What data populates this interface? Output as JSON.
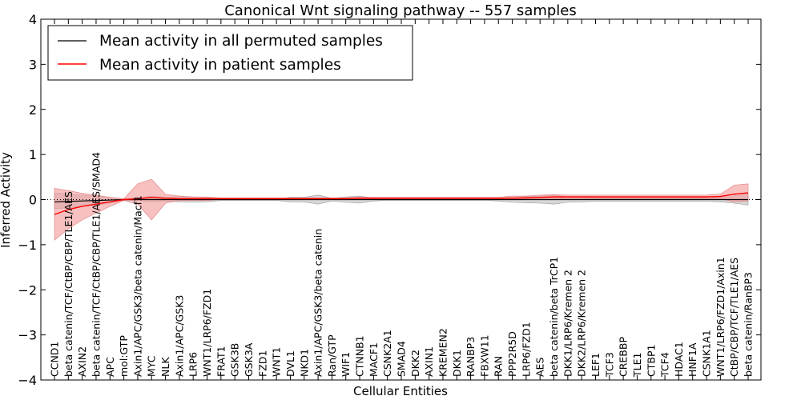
{
  "chart_data": {
    "type": "line",
    "title": "Canonical Wnt signaling pathway -- 557 samples",
    "xlabel": "Cellular Entities",
    "ylabel": "Inferred Activity",
    "ylim": [
      -4,
      4
    ],
    "yticks": [
      -4,
      -3,
      -2,
      -1,
      0,
      1,
      2,
      3,
      4
    ],
    "legend_position": "top-left",
    "colors": {
      "permuted": "#000000",
      "patient": "#ff0000",
      "patient_band": "#f4a0a0",
      "permuted_band": "#c8c8c8"
    },
    "categories": [
      "CCND1",
      "beta catenin/TCF/CtBP/CBP/TLE1/AES",
      "AXIN2",
      "beta catenin/TCF/CtBP/CBP/TLE1/AES/SMAD4",
      "APC",
      "mol:GTP",
      "Axin1/APC/GSK3/beta catenin/Macf1",
      "MYC",
      "NLK",
      "Axin1/APC/GSK3",
      "LRP6",
      "WNT1/LRP6/FZD1",
      "FRAT1",
      "GSK3B",
      "GSK3A",
      "FZD1",
      "WNT1",
      "DVL1",
      "NKD1",
      "Axin1/APC/GSK3/beta catenin",
      "Ran/GTP",
      "WIF1",
      "CTNNB1",
      "MACF1",
      "CSNK2A1",
      "SMAD4",
      "DKK2",
      "AXIN1",
      "KREMEN2",
      "DKK1",
      "RANBP3",
      "FBXW11",
      "RAN",
      "PPP2R5D",
      "LRP6/FZD1",
      "AES",
      "beta catenin/beta TrCP1",
      "DKK1/LRP6/Kremen 2",
      "DKK2/LRP6/Kremen 2",
      "LEF1",
      "TCF3",
      "CREBBP",
      "TLE1",
      "CTBP1",
      "TCF4",
      "HDAC1",
      "HNF1A",
      "CSNK1A1",
      "WNT1/LRP6/FZD1/Axin1",
      "CtBP/CBP/TCF/TLE1/AES",
      "beta catenin/RanBP3"
    ],
    "series": [
      {
        "name": "Mean activity in all permuted samples",
        "values": [
          -0.05,
          -0.04,
          -0.03,
          -0.02,
          -0.01,
          0.0,
          0.0,
          0.0,
          0.0,
          0.0,
          0.0,
          0.0,
          0.0,
          0.0,
          0.0,
          0.0,
          0.0,
          0.0,
          0.0,
          0.0,
          0.0,
          0.0,
          0.0,
          0.0,
          0.0,
          0.0,
          0.0,
          0.0,
          0.0,
          0.0,
          0.0,
          0.0,
          0.0,
          0.0,
          0.0,
          0.0,
          0.0,
          0.0,
          0.0,
          0.0,
          0.0,
          0.0,
          0.0,
          0.0,
          0.0,
          0.0,
          0.0,
          0.0,
          0.0,
          0.0,
          0.0
        ],
        "lower": [
          -0.2,
          -0.18,
          -0.15,
          -0.12,
          -0.08,
          -0.02,
          -0.02,
          -0.05,
          -0.03,
          -0.05,
          -0.06,
          -0.05,
          -0.02,
          -0.02,
          -0.02,
          -0.02,
          -0.02,
          -0.05,
          -0.05,
          -0.1,
          -0.03,
          -0.06,
          -0.08,
          -0.03,
          -0.02,
          -0.02,
          -0.02,
          -0.02,
          -0.02,
          -0.02,
          -0.02,
          -0.02,
          -0.03,
          -0.06,
          -0.07,
          -0.08,
          -0.1,
          -0.06,
          -0.05,
          -0.04,
          -0.04,
          -0.04,
          -0.04,
          -0.04,
          -0.04,
          -0.04,
          -0.04,
          -0.04,
          -0.05,
          -0.08,
          -0.12
        ],
        "upper": [
          0.15,
          0.12,
          0.1,
          0.08,
          0.05,
          0.02,
          0.04,
          0.08,
          0.05,
          0.07,
          0.06,
          0.05,
          0.02,
          0.02,
          0.02,
          0.02,
          0.02,
          0.05,
          0.05,
          0.1,
          0.03,
          0.06,
          0.08,
          0.03,
          0.02,
          0.02,
          0.02,
          0.02,
          0.02,
          0.02,
          0.02,
          0.02,
          0.03,
          0.06,
          0.07,
          0.08,
          0.1,
          0.06,
          0.05,
          0.04,
          0.04,
          0.04,
          0.04,
          0.04,
          0.04,
          0.04,
          0.04,
          0.04,
          0.05,
          0.08,
          0.12
        ]
      },
      {
        "name": "Mean activity in patient samples",
        "values": [
          -0.33,
          -0.22,
          -0.15,
          -0.1,
          -0.05,
          0.0,
          0.02,
          0.05,
          0.03,
          0.02,
          0.02,
          0.02,
          0.02,
          0.02,
          0.02,
          0.02,
          0.02,
          0.02,
          0.02,
          0.02,
          0.02,
          0.02,
          0.03,
          0.03,
          0.03,
          0.03,
          0.03,
          0.03,
          0.03,
          0.03,
          0.03,
          0.03,
          0.03,
          0.03,
          0.04,
          0.05,
          0.06,
          0.06,
          0.06,
          0.06,
          0.06,
          0.06,
          0.06,
          0.06,
          0.06,
          0.06,
          0.06,
          0.06,
          0.07,
          0.12,
          0.15
        ],
        "lower": [
          -0.9,
          -0.65,
          -0.45,
          -0.3,
          -0.15,
          -0.02,
          -0.1,
          -0.45,
          -0.08,
          -0.02,
          -0.02,
          -0.02,
          0.0,
          0.0,
          0.0,
          0.0,
          0.0,
          0.0,
          0.0,
          0.0,
          0.0,
          0.0,
          0.0,
          0.01,
          0.01,
          0.01,
          0.01,
          0.01,
          0.01,
          0.01,
          0.01,
          0.01,
          0.01,
          0.0,
          0.01,
          0.01,
          0.01,
          0.02,
          0.02,
          0.02,
          0.02,
          0.02,
          0.02,
          0.02,
          0.02,
          0.02,
          0.02,
          0.02,
          0.02,
          -0.05,
          -0.03
        ],
        "upper": [
          0.25,
          0.2,
          0.14,
          0.1,
          0.05,
          0.02,
          0.35,
          0.45,
          0.12,
          0.08,
          0.06,
          0.06,
          0.04,
          0.04,
          0.04,
          0.04,
          0.04,
          0.04,
          0.04,
          0.04,
          0.04,
          0.04,
          0.06,
          0.05,
          0.05,
          0.05,
          0.05,
          0.05,
          0.05,
          0.05,
          0.05,
          0.05,
          0.05,
          0.08,
          0.08,
          0.1,
          0.11,
          0.1,
          0.1,
          0.1,
          0.1,
          0.1,
          0.1,
          0.1,
          0.1,
          0.1,
          0.1,
          0.1,
          0.12,
          0.32,
          0.35
        ]
      }
    ]
  }
}
